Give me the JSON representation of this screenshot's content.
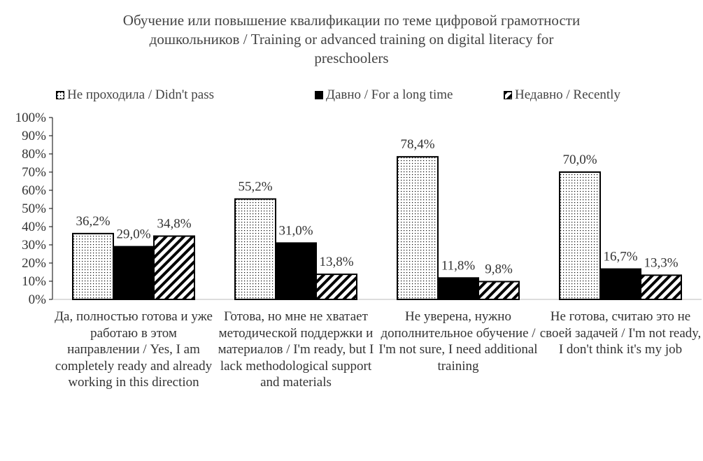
{
  "chart_data": {
    "type": "bar",
    "title": "Обучение или повышение квалификации по теме цифровой грамотности дошкольников / Training  or advanced training on digital literacy  for preschoolers",
    "title_lines": [
      "Обучение или повышение квалификации по теме цифровой грамотности",
      "дошкольников / Training  or advanced training on digital literacy  for",
      "preschoolers"
    ],
    "categories": [
      "Да, полностью готова и уже работаю в этом направлении / Yes, I am completely ready and already working in this direction",
      "Готова, но мне не хватает методической поддержки и материалов / I'm ready, but I lack methodological support and materials",
      "Не уверена, нужно дополнительное обучение / I'm not sure, I need additional training",
      "Не готова, считаю это не своей задачей / I'm not ready, I don't think it's my job"
    ],
    "series": [
      {
        "name": "Не проходила / Didn't pass",
        "pattern": "dots",
        "values": [
          36.2,
          55.2,
          78.4,
          70.0
        ],
        "labels": [
          "36,2%",
          "55,2%",
          "78,4%",
          "70,0%"
        ]
      },
      {
        "name": "Давно / For a long time",
        "pattern": "solid",
        "values": [
          29.0,
          31.0,
          11.8,
          16.7
        ],
        "labels": [
          "29,0%",
          "31,0%",
          "11,8%",
          "16,7%"
        ]
      },
      {
        "name": "Недавно / Recently",
        "pattern": "diagonal",
        "values": [
          34.8,
          13.8,
          9.8,
          13.3
        ],
        "labels": [
          "34,8%",
          "13,8%",
          "9,8%",
          "13,3%"
        ]
      }
    ],
    "yticks": [
      "0%",
      "10%",
      "20%",
      "30%",
      "40%",
      "50%",
      "60%",
      "70%",
      "80%",
      "90%",
      "100%"
    ],
    "ylim": [
      0,
      100
    ],
    "grid": false,
    "legend_position": "top",
    "colors": {
      "bar_fill": "#000000",
      "background": "#ffffff"
    }
  }
}
